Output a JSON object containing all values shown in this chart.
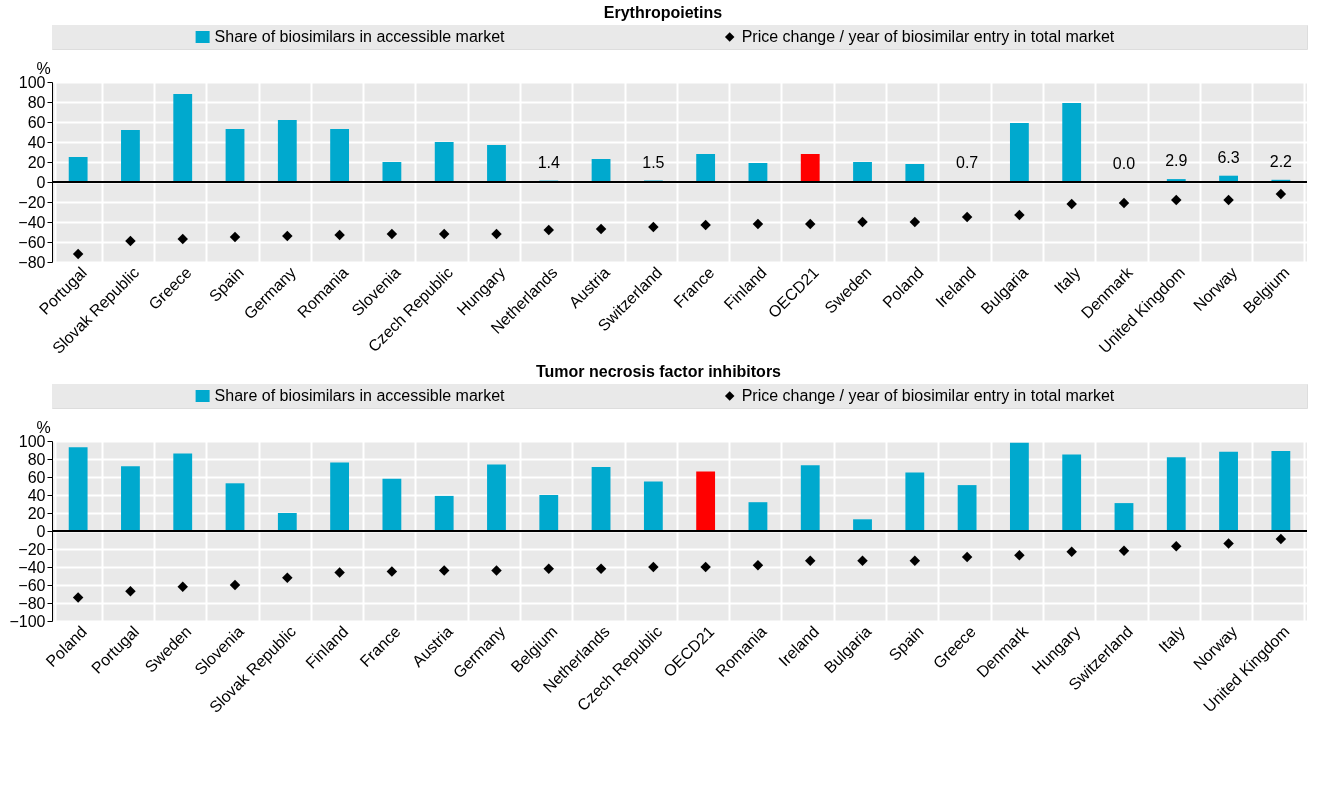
{
  "chart_data": [
    {
      "type": "bar",
      "title": "Erythropoietins",
      "ylabel": "%",
      "categories": [
        "Portugal",
        "Slovak Republic",
        "Greece",
        "Spain",
        "Germany",
        "Romania",
        "Slovenia",
        "Czech Republic",
        "Hungary",
        "Netherlands",
        "Austria",
        "Switzerland",
        "France",
        "Finland",
        "OECD21",
        "Sweden",
        "Poland",
        "Ireland",
        "Bulgaria",
        "Italy",
        "Denmark",
        "United Kingdom",
        "Norway",
        "Belgium"
      ],
      "series": [
        {
          "name": "Share of biosimilars in accessible market",
          "color": "#00a9ce",
          "colors": [
            "#00a9ce",
            "#00a9ce",
            "#00a9ce",
            "#00a9ce",
            "#00a9ce",
            "#00a9ce",
            "#00a9ce",
            "#00a9ce",
            "#00a9ce",
            "#00a9ce",
            "#00a9ce",
            "#00a9ce",
            "#00a9ce",
            "#00a9ce",
            "#ff0000",
            "#00a9ce",
            "#00a9ce",
            "#00a9ce",
            "#00a9ce",
            "#00a9ce",
            "#00a9ce",
            "#00a9ce",
            "#00a9ce",
            "#00a9ce"
          ],
          "values": [
            25,
            52,
            88,
            53,
            62,
            53,
            20,
            40,
            37,
            1.4,
            23,
            1.5,
            28,
            19,
            28,
            20,
            18,
            0.7,
            59,
            79,
            0.0,
            2.9,
            6.3,
            2.2
          ],
          "value_labels": [
            null,
            null,
            null,
            null,
            null,
            null,
            null,
            null,
            null,
            "1.4",
            null,
            "1.5",
            null,
            null,
            null,
            null,
            null,
            "0.7",
            null,
            null,
            "0.0",
            "2.9",
            "6.3",
            "2.2"
          ]
        },
        {
          "name": "Price change / year of biosimilar entry in total market",
          "type": "scatter",
          "marker": "diamond",
          "color": "#000000",
          "values": [
            -72,
            -59,
            -57,
            -55,
            -54,
            -53,
            -52,
            -52,
            -52,
            -48,
            -47,
            -45,
            -43,
            -42,
            -42,
            -40,
            -40,
            -35,
            -33,
            -22,
            -21,
            -18,
            -18,
            -12
          ]
        }
      ],
      "ylim": [
        -80,
        100
      ],
      "yticks": [
        -80,
        -60,
        -40,
        -20,
        0,
        20,
        40,
        60,
        80,
        100
      ],
      "grid": true,
      "legend": "top"
    },
    {
      "type": "bar",
      "title": "Tumor necrosis factor inhibitors",
      "ylabel": "%",
      "categories": [
        "Poland",
        "Portugal",
        "Sweden",
        "Slovenia",
        "Slovak Republic",
        "Finland",
        "France",
        "Austria",
        "Germany",
        "Belgium",
        "Netherlands",
        "Czech Republic",
        "OECD21",
        "Romania",
        "Ireland",
        "Bulgaria",
        "Spain",
        "Greece",
        "Denmark",
        "Hungary",
        "Switzerland",
        "Italy",
        "Norway",
        "United Kingdom"
      ],
      "series": [
        {
          "name": "Share of biosimilars in accessible market",
          "color": "#00a9ce",
          "colors": [
            "#00a9ce",
            "#00a9ce",
            "#00a9ce",
            "#00a9ce",
            "#00a9ce",
            "#00a9ce",
            "#00a9ce",
            "#00a9ce",
            "#00a9ce",
            "#00a9ce",
            "#00a9ce",
            "#00a9ce",
            "#ff0000",
            "#00a9ce",
            "#00a9ce",
            "#00a9ce",
            "#00a9ce",
            "#00a9ce",
            "#00a9ce",
            "#00a9ce",
            "#00a9ce",
            "#00a9ce",
            "#00a9ce",
            "#00a9ce"
          ],
          "values": [
            93,
            72,
            86,
            53,
            20,
            76,
            58,
            39,
            74,
            40,
            71,
            55,
            66,
            32,
            73,
            13,
            65,
            51,
            98,
            85,
            31,
            82,
            88,
            89
          ]
        },
        {
          "name": "Price change / year of biosimilar entry in total market",
          "type": "scatter",
          "marker": "diamond",
          "color": "#000000",
          "values": [
            -74,
            -67,
            -62,
            -60,
            -52,
            -46,
            -45,
            -44,
            -44,
            -42,
            -42,
            -40,
            -40,
            -38,
            -33,
            -33,
            -33,
            -29,
            -27,
            -23,
            -22,
            -17,
            -14,
            -9
          ]
        }
      ],
      "ylim": [
        -100,
        100
      ],
      "yticks": [
        -100,
        -80,
        -60,
        -40,
        -20,
        0,
        20,
        40,
        60,
        80,
        100
      ],
      "grid": true,
      "legend": "top"
    }
  ]
}
